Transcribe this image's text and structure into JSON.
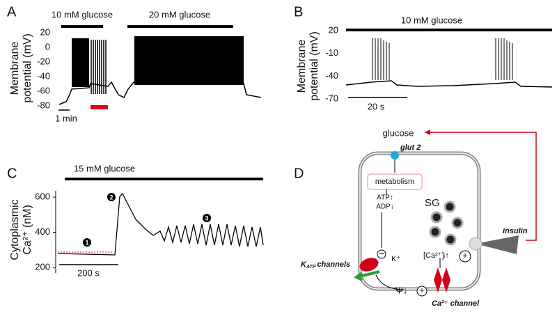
{
  "panels": [
    {
      "label": "A",
      "annotations": [
        "10 mM glucose",
        "20 mM glucose"
      ],
      "y_label": [
        "Membrane",
        "potential (mV)"
      ],
      "ylim": [
        -80,
        20
      ],
      "yticks": [
        20,
        0,
        -20,
        -40,
        -60,
        -80
      ],
      "scale_bar": "1 min"
    },
    {
      "label": "B",
      "annotations": [
        "10 mM glucose"
      ],
      "y_label": [
        "Membrane",
        "potential (mV)"
      ],
      "ylim": [
        -70,
        20
      ],
      "yticks": [
        20,
        -10,
        -40,
        -70
      ],
      "scale_bar": "20 s"
    },
    {
      "label": "C",
      "annotations": [
        "15 mM glucose"
      ],
      "y_label": [
        "Cytoplasmic",
        "Ca²⁺ (nM)"
      ],
      "ylim": [
        200,
        600
      ],
      "yticks": [
        600,
        400,
        200
      ],
      "scale_bar": "200 s",
      "markers": [
        "1",
        "2",
        "3"
      ]
    },
    {
      "label": "D",
      "glucose": "glucose",
      "glut2": "glut 2",
      "metabolism": "metabolism",
      "atp": "ATP↑",
      "adp": "ADP↓",
      "minus": "−",
      "k_ion": "K⁺",
      "sg": "SG",
      "ca_i": "[Ca²⁺]ᵢ↑",
      "plus": "+",
      "insulin": "insulin",
      "katp": {
        "main": "K",
        "sub": "ATP",
        "rest": "channels"
      },
      "psi": "Ψ↓",
      "ca_channel": "Ca²⁺ channel"
    }
  ]
}
